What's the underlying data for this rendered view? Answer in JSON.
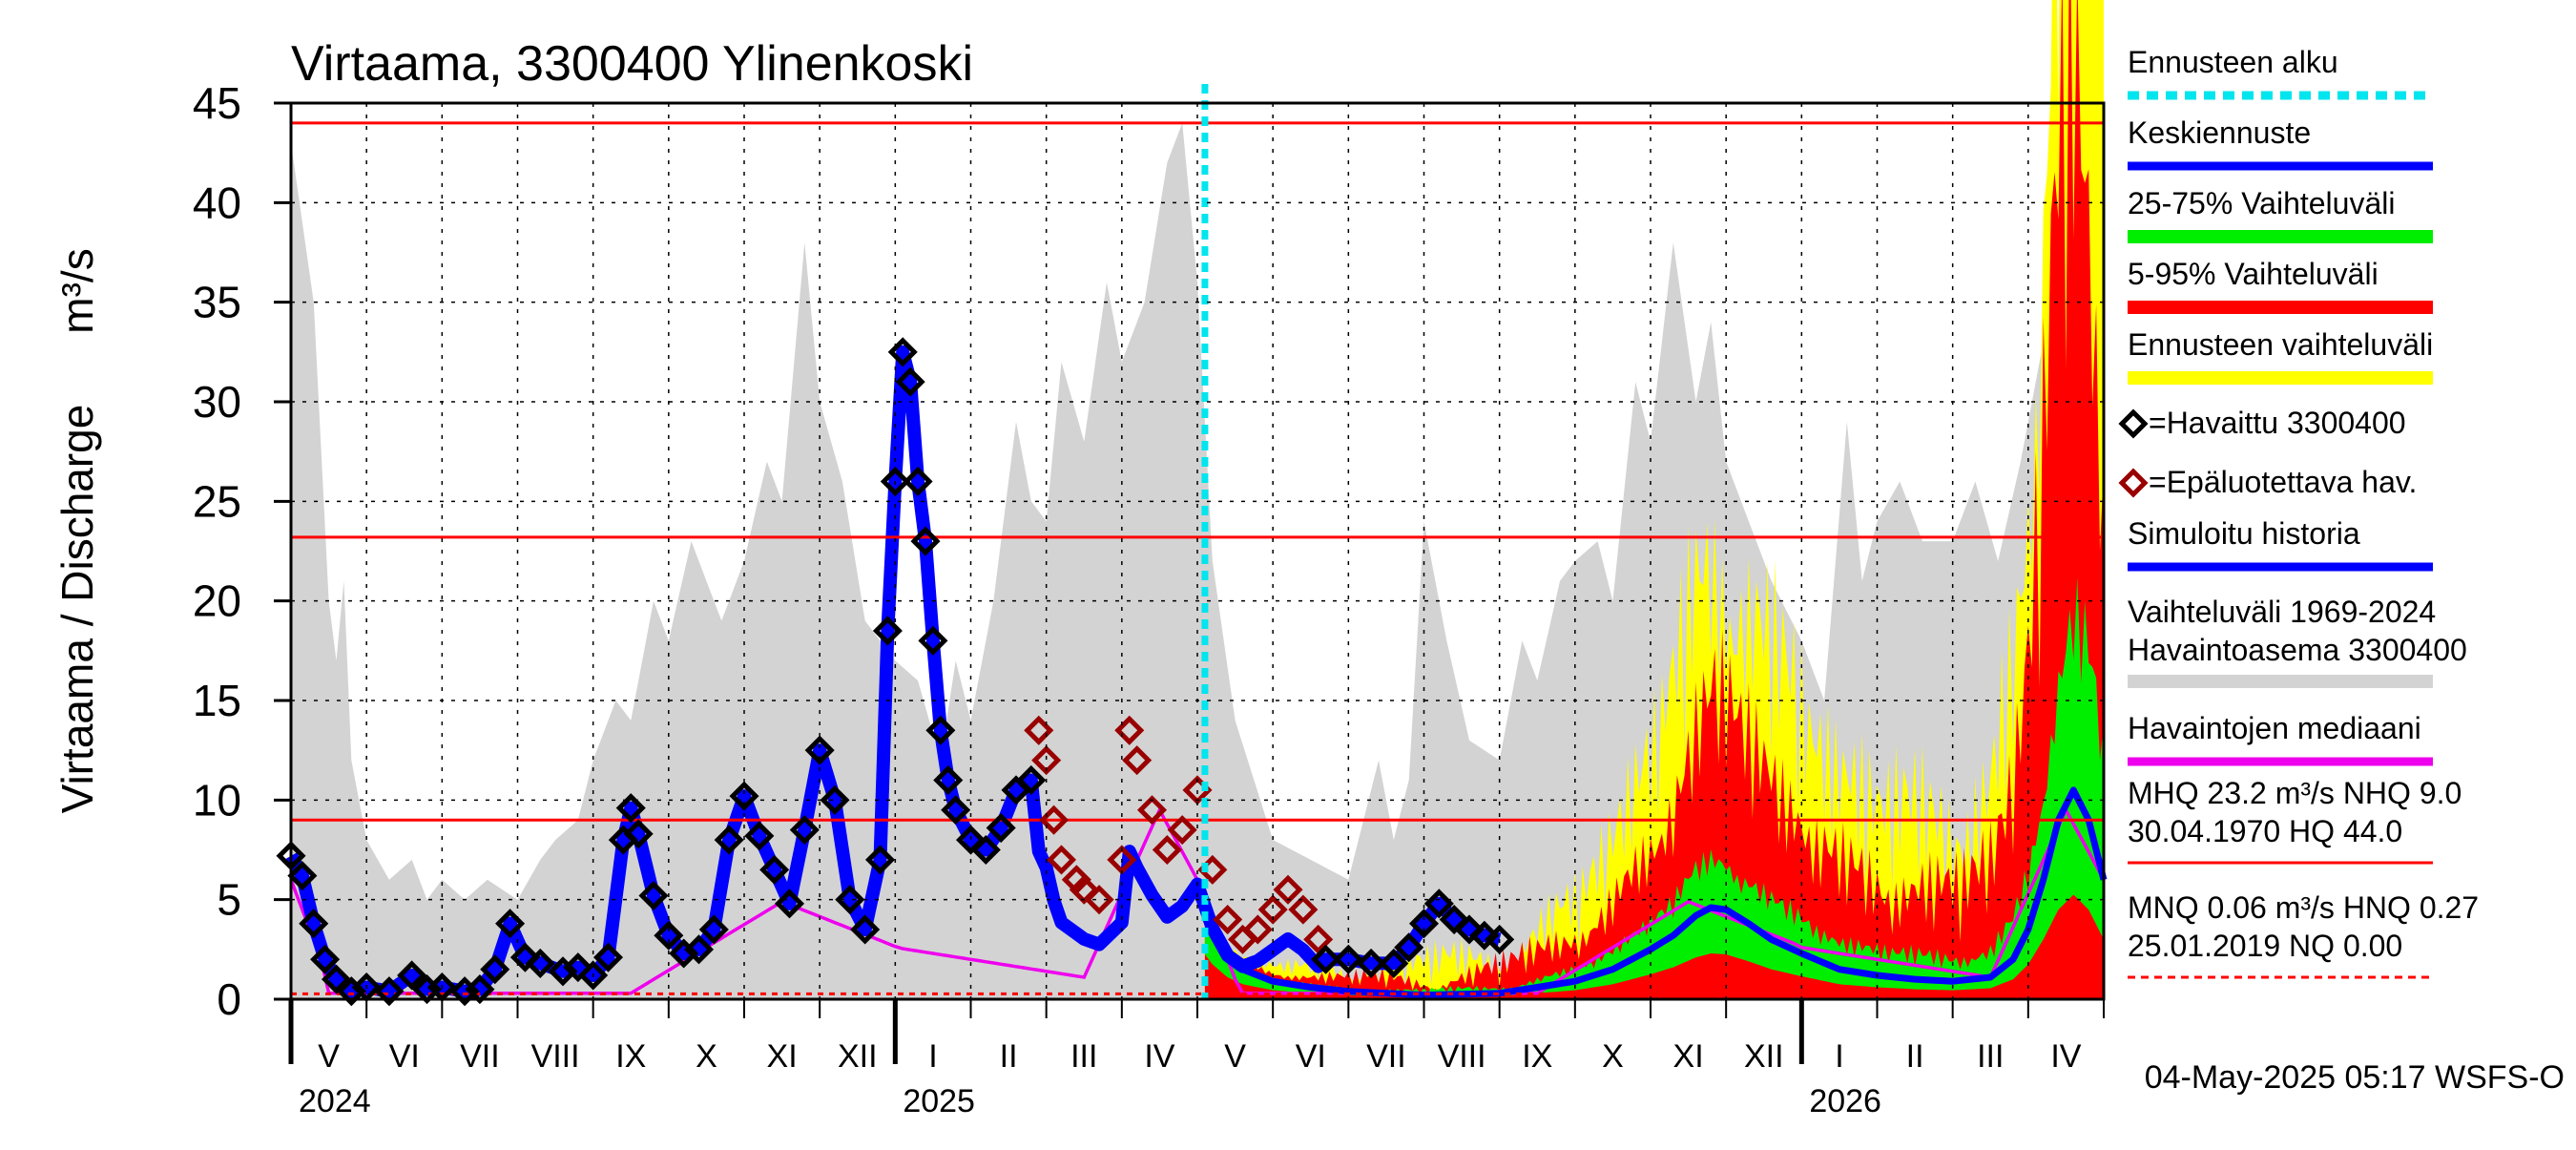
{
  "chart_data": {
    "type": "area",
    "title": "Virtaama, 3300400 Ylinenkoski",
    "ylabel": "Virtaama / Discharge",
    "yunit": "m³/s",
    "ylim": [
      0,
      45
    ],
    "yticks": [
      0,
      5,
      10,
      15,
      20,
      25,
      30,
      35,
      40,
      45
    ],
    "x_range_months": [
      0,
      24
    ],
    "x_months_note": "month index 0 = 1 May 2024, 24 = 1 May 2026",
    "month_labels": [
      {
        "m": 0,
        "label": "V"
      },
      {
        "m": 1,
        "label": "VI"
      },
      {
        "m": 2,
        "label": "VII"
      },
      {
        "m": 3,
        "label": "VIII"
      },
      {
        "m": 4,
        "label": "IX"
      },
      {
        "m": 5,
        "label": "X"
      },
      {
        "m": 6,
        "label": "XI"
      },
      {
        "m": 7,
        "label": "XII"
      },
      {
        "m": 8,
        "label": "I"
      },
      {
        "m": 9,
        "label": "II"
      },
      {
        "m": 10,
        "label": "III"
      },
      {
        "m": 11,
        "label": "IV"
      },
      {
        "m": 12,
        "label": "V"
      },
      {
        "m": 13,
        "label": "VI"
      },
      {
        "m": 14,
        "label": "VII"
      },
      {
        "m": 15,
        "label": "VIII"
      },
      {
        "m": 16,
        "label": "IX"
      },
      {
        "m": 17,
        "label": "X"
      },
      {
        "m": 18,
        "label": "XI"
      },
      {
        "m": 19,
        "label": "XII"
      },
      {
        "m": 20,
        "label": "I"
      },
      {
        "m": 21,
        "label": "II"
      },
      {
        "m": 22,
        "label": "III"
      },
      {
        "m": 23,
        "label": "IV"
      }
    ],
    "years": [
      {
        "m": 0,
        "label": "2024"
      },
      {
        "m": 8,
        "label": "2025"
      },
      {
        "m": 20,
        "label": "2026"
      }
    ],
    "forecast_start_month": 12.1,
    "reference_lines": [
      {
        "name": "HQ",
        "value": 44.0,
        "style": "solid"
      },
      {
        "name": "MHQ",
        "value": 23.2,
        "style": "solid"
      },
      {
        "name": "NHQ",
        "value": 9.0,
        "style": "solid"
      },
      {
        "name": "HNQ",
        "value": 0.27,
        "style": "dashed"
      }
    ],
    "historical_range_max": [
      [
        0,
        43
      ],
      [
        0.3,
        35
      ],
      [
        0.5,
        20
      ],
      [
        0.6,
        17
      ],
      [
        0.7,
        21
      ],
      [
        0.8,
        12
      ],
      [
        1,
        8
      ],
      [
        1.3,
        6
      ],
      [
        1.6,
        7
      ],
      [
        1.8,
        5
      ],
      [
        2,
        6
      ],
      [
        2.3,
        5
      ],
      [
        2.6,
        6
      ],
      [
        3,
        5
      ],
      [
        3.3,
        7
      ],
      [
        3.5,
        8
      ],
      [
        3.8,
        9
      ],
      [
        4,
        12
      ],
      [
        4.3,
        15
      ],
      [
        4.5,
        14
      ],
      [
        4.8,
        20
      ],
      [
        5,
        18
      ],
      [
        5.3,
        23
      ],
      [
        5.5,
        21
      ],
      [
        5.7,
        19
      ],
      [
        6,
        22
      ],
      [
        6.3,
        27
      ],
      [
        6.5,
        25
      ],
      [
        6.8,
        38
      ],
      [
        7,
        30
      ],
      [
        7.3,
        26
      ],
      [
        7.6,
        19
      ],
      [
        8,
        17
      ],
      [
        8.3,
        16
      ],
      [
        8.6,
        12
      ],
      [
        8.8,
        17
      ],
      [
        9,
        14
      ],
      [
        9.3,
        20
      ],
      [
        9.6,
        29
      ],
      [
        9.8,
        25
      ],
      [
        10,
        24
      ],
      [
        10.2,
        32
      ],
      [
        10.5,
        28
      ],
      [
        10.8,
        36
      ],
      [
        11,
        32
      ],
      [
        11.3,
        35
      ],
      [
        11.6,
        42
      ],
      [
        11.8,
        44
      ],
      [
        12,
        36
      ],
      [
        12.2,
        22
      ],
      [
        12.5,
        14
      ],
      [
        13,
        8
      ],
      [
        13.5,
        7
      ],
      [
        14,
        6
      ],
      [
        14.4,
        12
      ],
      [
        14.6,
        8
      ],
      [
        14.8,
        11
      ],
      [
        15,
        24
      ],
      [
        15.3,
        18
      ],
      [
        15.6,
        13
      ],
      [
        16,
        12
      ],
      [
        16.3,
        18
      ],
      [
        16.5,
        16
      ],
      [
        16.8,
        21
      ],
      [
        17,
        22
      ],
      [
        17.3,
        23
      ],
      [
        17.5,
        20
      ],
      [
        17.8,
        31
      ],
      [
        18,
        28
      ],
      [
        18.3,
        38
      ],
      [
        18.6,
        30
      ],
      [
        18.8,
        34
      ],
      [
        19,
        27
      ],
      [
        19.3,
        24
      ],
      [
        19.6,
        21
      ],
      [
        20,
        18
      ],
      [
        20.3,
        15
      ],
      [
        20.6,
        29
      ],
      [
        20.8,
        21
      ],
      [
        21,
        24
      ],
      [
        21.3,
        26
      ],
      [
        21.6,
        23
      ],
      [
        22,
        23
      ],
      [
        22.3,
        26
      ],
      [
        22.6,
        22
      ],
      [
        22.9,
        27
      ],
      [
        23.2,
        33
      ],
      [
        23.5,
        40
      ],
      [
        23.7,
        44
      ],
      [
        24,
        40
      ]
    ],
    "forecast_mean": [
      [
        12.1,
        4.5
      ],
      [
        12.2,
        3.5
      ],
      [
        12.4,
        2.2
      ],
      [
        12.6,
        1.5
      ],
      [
        13,
        0.9
      ],
      [
        13.5,
        0.6
      ],
      [
        14,
        0.4
      ],
      [
        15,
        0.2
      ],
      [
        16,
        0.3
      ],
      [
        16.5,
        0.6
      ],
      [
        17,
        0.9
      ],
      [
        17.5,
        1.5
      ],
      [
        18,
        2.5
      ],
      [
        18.3,
        3.2
      ],
      [
        18.6,
        4.2
      ],
      [
        18.8,
        4.6
      ],
      [
        19,
        4.5
      ],
      [
        19.3,
        3.8
      ],
      [
        19.6,
        3.0
      ],
      [
        20,
        2.3
      ],
      [
        20.5,
        1.5
      ],
      [
        21,
        1.2
      ],
      [
        21.5,
        1.0
      ],
      [
        22,
        0.9
      ],
      [
        22.5,
        1.1
      ],
      [
        22.8,
        2.0
      ],
      [
        23,
        3.5
      ],
      [
        23.2,
        6.0
      ],
      [
        23.4,
        9.0
      ],
      [
        23.6,
        10.5
      ],
      [
        23.8,
        9.0
      ],
      [
        24,
        6.0
      ]
    ],
    "observed": [
      [
        0,
        7.2
      ],
      [
        0.15,
        6.2
      ],
      [
        0.3,
        3.8
      ],
      [
        0.45,
        2
      ],
      [
        0.6,
        1
      ],
      [
        0.8,
        0.4
      ],
      [
        1,
        0.6
      ],
      [
        1.3,
        0.4
      ],
      [
        1.6,
        1.2
      ],
      [
        1.8,
        0.5
      ],
      [
        2,
        0.6
      ],
      [
        2.3,
        0.4
      ],
      [
        2.5,
        0.5
      ],
      [
        2.7,
        1.5
      ],
      [
        2.9,
        3.8
      ],
      [
        3.1,
        2.1
      ],
      [
        3.3,
        1.8
      ],
      [
        3.6,
        1.4
      ],
      [
        3.8,
        1.6
      ],
      [
        4,
        1.2
      ],
      [
        4.2,
        2.1
      ],
      [
        4.4,
        8
      ],
      [
        4.5,
        9.6
      ],
      [
        4.6,
        8.3
      ],
      [
        4.8,
        5.2
      ],
      [
        5,
        3.2
      ],
      [
        5.2,
        2.3
      ],
      [
        5.4,
        2.5
      ],
      [
        5.6,
        3.5
      ],
      [
        5.8,
        8
      ],
      [
        6,
        10.2
      ],
      [
        6.2,
        8.2
      ],
      [
        6.4,
        6.5
      ],
      [
        6.6,
        4.8
      ],
      [
        6.8,
        8.5
      ],
      [
        7,
        12.5
      ],
      [
        7.2,
        10
      ],
      [
        7.4,
        5
      ],
      [
        7.6,
        3.5
      ],
      [
        7.8,
        7
      ],
      [
        7.9,
        18.5
      ],
      [
        8,
        26
      ],
      [
        8.1,
        32.5
      ],
      [
        8.2,
        31
      ],
      [
        8.3,
        26
      ],
      [
        8.4,
        23
      ],
      [
        8.5,
        18
      ],
      [
        8.6,
        13.5
      ],
      [
        8.7,
        11
      ],
      [
        8.8,
        9.5
      ],
      [
        9,
        8
      ],
      [
        9.2,
        7.5
      ],
      [
        9.4,
        8.6
      ],
      [
        9.6,
        10.5
      ],
      [
        9.8,
        11
      ]
    ],
    "unreliable_observed": [
      [
        9.9,
        13.5
      ],
      [
        10,
        12
      ],
      [
        10.1,
        9
      ],
      [
        10.2,
        7
      ],
      [
        10.4,
        6
      ],
      [
        10.5,
        5.5
      ],
      [
        10.7,
        5
      ],
      [
        11,
        7
      ],
      [
        11.1,
        13.5
      ],
      [
        11.2,
        12
      ],
      [
        11.4,
        9.5
      ],
      [
        11.6,
        7.5
      ],
      [
        11.8,
        8.5
      ],
      [
        12,
        10.5
      ],
      [
        12.2,
        6.5
      ],
      [
        12.4,
        4
      ],
      [
        12.6,
        3
      ],
      [
        12.8,
        3.5
      ],
      [
        13,
        4.5
      ],
      [
        13.2,
        5.5
      ],
      [
        13.4,
        4.5
      ],
      [
        13.6,
        3
      ]
    ],
    "observed_tail": [
      [
        13.7,
        2
      ],
      [
        14,
        2
      ],
      [
        14.3,
        1.8
      ],
      [
        14.6,
        1.8
      ],
      [
        14.8,
        2.6
      ],
      [
        15,
        3.8
      ],
      [
        15.2,
        4.8
      ],
      [
        15.4,
        4
      ],
      [
        15.6,
        3.5
      ],
      [
        15.8,
        3.2
      ],
      [
        16,
        3
      ]
    ],
    "legend": [
      {
        "label": "Ennusteen alku",
        "color": "#00e5ee",
        "kind": "dashed"
      },
      {
        "label": "Keskiennuste",
        "color": "#0000ff",
        "kind": "line"
      },
      {
        "label": "25-75% Vaihteluväli",
        "color": "#00ee00",
        "kind": "band"
      },
      {
        "label": "5-95% Vaihteluväli",
        "color": "#ff0000",
        "kind": "band"
      },
      {
        "label": "Ennusteen vaihteluväli",
        "color": "#ffff00",
        "kind": "band"
      },
      {
        "label": "=Havaittu 3300400",
        "color": "#000000",
        "kind": "diamond"
      },
      {
        "label": "=Epäluotettava hav.",
        "color": "#990000",
        "kind": "diamond"
      },
      {
        "label": "Simuloitu historia",
        "color": "#0000ff",
        "kind": "line"
      },
      {
        "label": "Vaihteluväli 1969-2024",
        "label2": " Havaintoasema 3300400",
        "color": "#d3d3d3",
        "kind": "band"
      },
      {
        "label": "Havaintojen mediaani",
        "color": "#ee00ee",
        "kind": "line"
      }
    ],
    "stats_lines": [
      "MHQ 23.2 m³/s NHQ  9.0",
      "30.04.1970 HQ 44.0",
      "MNQ 0.06 m³/s HNQ 0.27",
      "25.01.2019 NQ 0.00"
    ],
    "footer": "04-May-2025 05:17 WSFS-O"
  }
}
